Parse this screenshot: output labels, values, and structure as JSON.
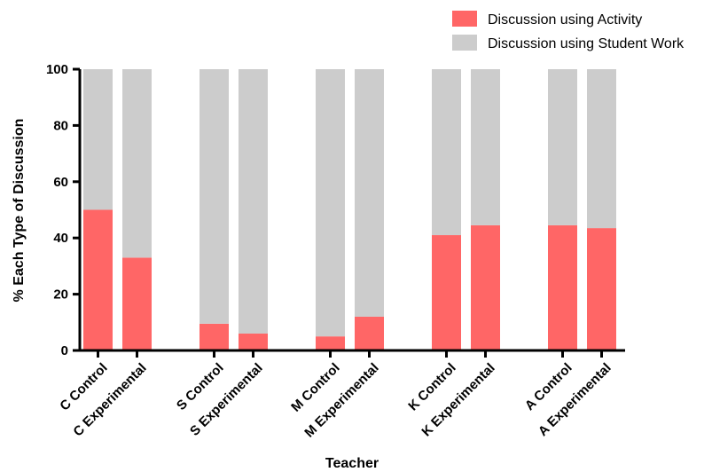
{
  "chart_data": {
    "type": "bar",
    "stacked": true,
    "percent_stacked": true,
    "title": "",
    "xlabel": "Teacher",
    "ylabel": "% Each Type of Discussion",
    "ylim": [
      0,
      100
    ],
    "yticks": [
      0,
      20,
      40,
      60,
      80,
      100
    ],
    "grid": false,
    "legend_position": "top-right",
    "categories": [
      "C Control",
      "C Experimental",
      "S Control",
      "S Experimental",
      "M Control",
      "M Experimental",
      "K Control",
      "K Experimental",
      "A Control",
      "A Experimental"
    ],
    "groups": [
      [
        "C Control",
        "C Experimental"
      ],
      [
        "S Control",
        "S Experimental"
      ],
      [
        "M Control",
        "M Experimental"
      ],
      [
        "K Control",
        "K Experimental"
      ],
      [
        "A Control",
        "A Experimental"
      ]
    ],
    "series": [
      {
        "name": "Discussion using Activity",
        "color": "#ff6666",
        "values": [
          50,
          33,
          9.5,
          6,
          5,
          12,
          41,
          44.5,
          44.5,
          43.5
        ]
      },
      {
        "name": "Discussion using Student Work",
        "color": "#cccccc",
        "values": [
          50,
          67,
          90.5,
          94,
          95,
          88,
          59,
          55.5,
          55.5,
          56.5
        ]
      }
    ]
  }
}
